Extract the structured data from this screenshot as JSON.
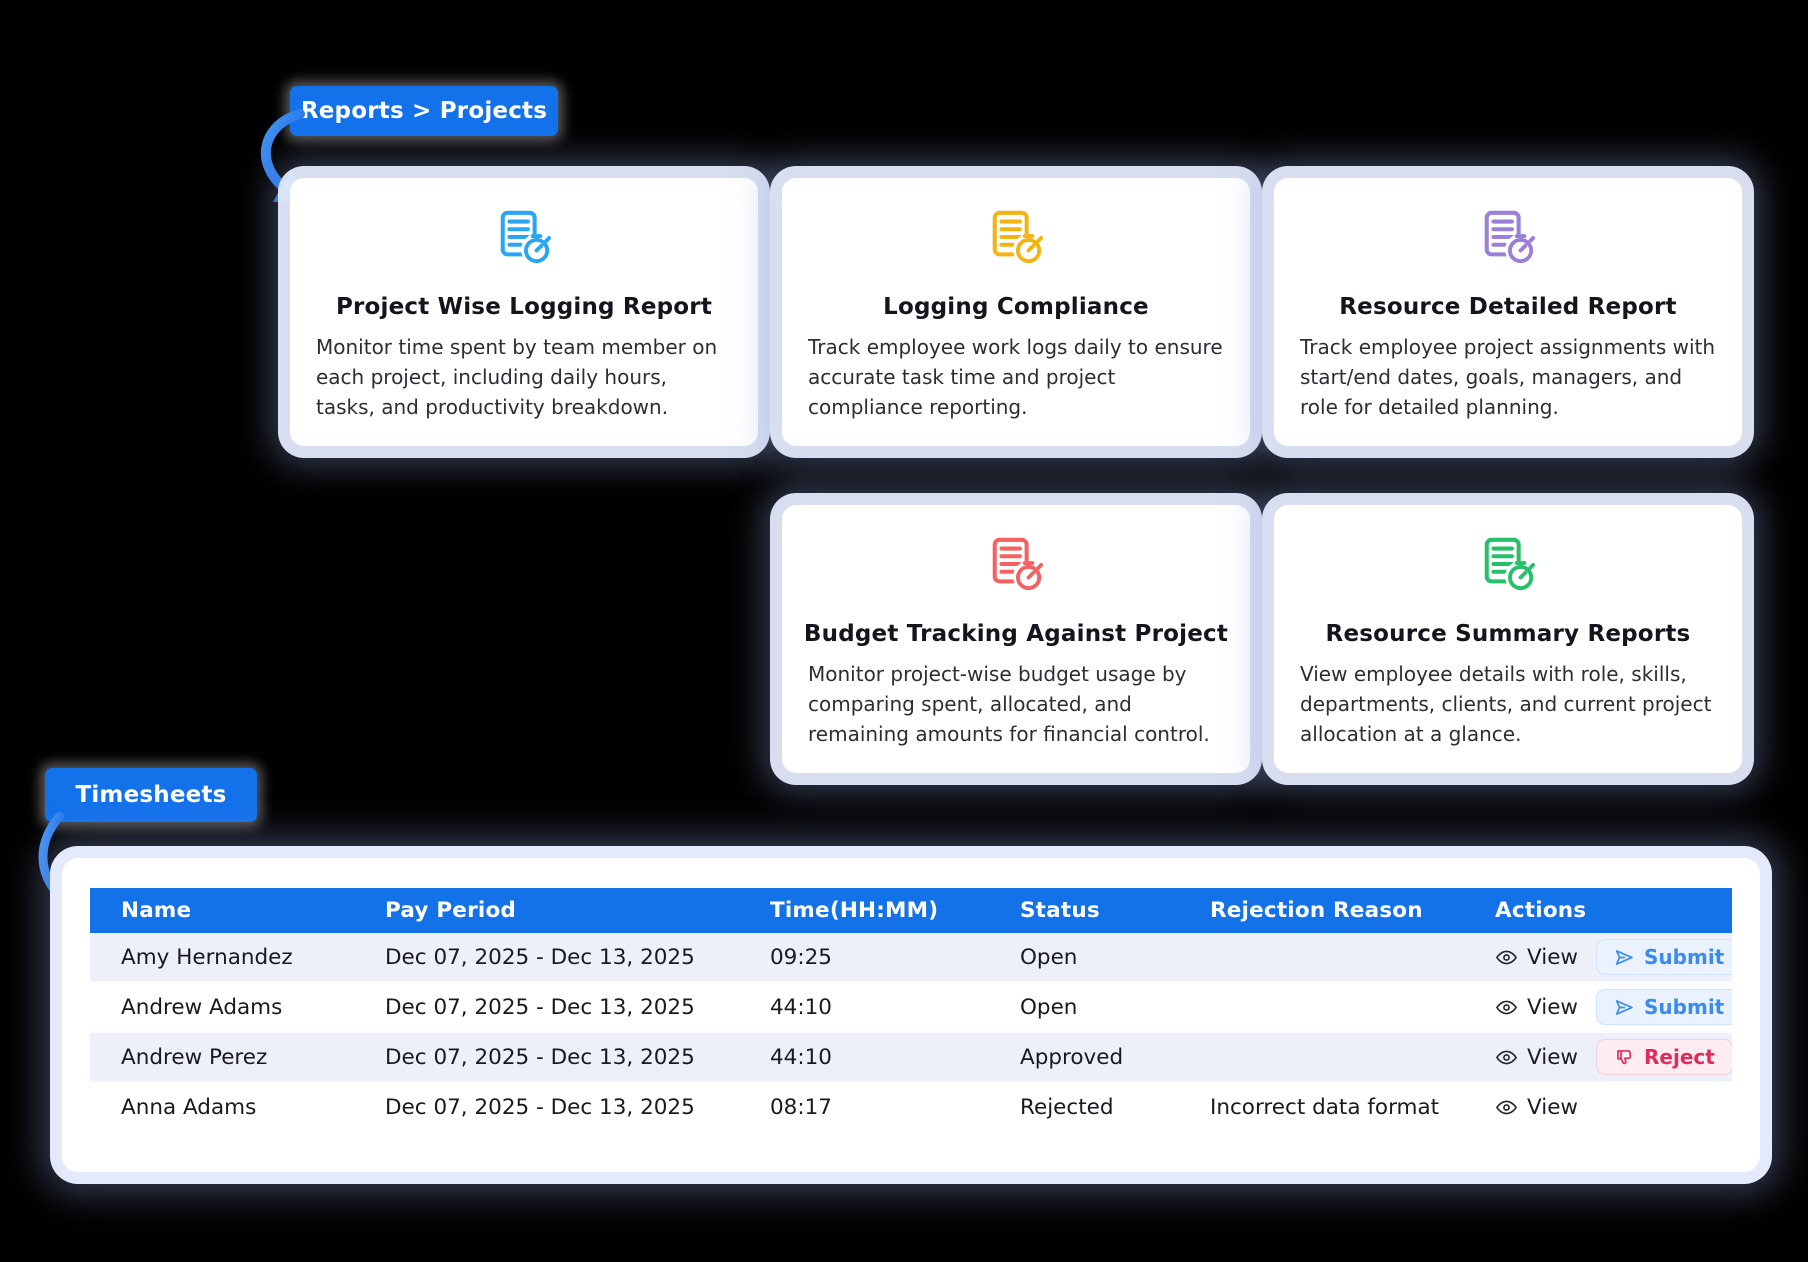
{
  "badges": {
    "reports_breadcrumb": "Reports > Projects",
    "timesheets": "Timesheets"
  },
  "report_cards": [
    {
      "title": "Project Wise Logging Report",
      "description": "Monitor time spent by team member on each project, including daily hours, tasks, and productivity breakdown.",
      "accent_color": "#2aa5f4"
    },
    {
      "title": "Logging Compliance",
      "description": "Track employee work logs daily to ensure accurate task time and project compliance reporting.",
      "accent_color": "#f2b411"
    },
    {
      "title": "Resource Detailed Report",
      "description": "Track employee project assignments with start/end dates, goals, managers, and role for detailed planning.",
      "accent_color": "#9b7fd8"
    },
    {
      "title": "Budget Tracking Against Project",
      "description": "Monitor project-wise budget usage by comparing spent, allocated, and remaining amounts for financial control.",
      "accent_color": "#f56161"
    },
    {
      "title": "Resource Summary Reports",
      "description": "View employee details with role, skills, departments, clients, and current project allocation at a glance.",
      "accent_color": "#27c06a"
    }
  ],
  "timesheet_table": {
    "columns": [
      "Name",
      "Pay Period",
      "Time(HH:MM)",
      "Status",
      "Rejection Reason",
      "Actions"
    ],
    "rows": [
      {
        "name": "Amy Hernandez",
        "pay_period": "Dec 07, 2025 - Dec 13, 2025",
        "time": "09:25",
        "status": "Open",
        "status_type": "open",
        "rejection_reason": "",
        "actions": [
          "view",
          "submit"
        ]
      },
      {
        "name": "Andrew Adams",
        "pay_period": "Dec 07, 2025 - Dec 13, 2025",
        "time": "44:10",
        "status": "Open",
        "status_type": "open",
        "rejection_reason": "",
        "actions": [
          "view",
          "submit"
        ]
      },
      {
        "name": "Andrew Perez",
        "pay_period": "Dec 07, 2025 - Dec 13, 2025",
        "time": "44:10",
        "status": "Approved",
        "status_type": "approved",
        "rejection_reason": "",
        "actions": [
          "view",
          "reject"
        ]
      },
      {
        "name": "Anna Adams",
        "pay_period": "Dec 07, 2025 - Dec 13, 2025",
        "time": "08:17",
        "status": "Rejected",
        "status_type": "rejected",
        "rejection_reason": "Incorrect data format",
        "actions": [
          "view"
        ]
      }
    ],
    "action_labels": {
      "view": "View",
      "submit": "Submit",
      "reject": "Reject"
    }
  },
  "colors": {
    "primary_blue": "#1472e8",
    "approved_green": "#27ae60",
    "rejected_red": "#e63430",
    "submit_blue": "#3b8bee",
    "reject_pink": "#e02c5c",
    "card_halo": "#e2e8fa"
  }
}
